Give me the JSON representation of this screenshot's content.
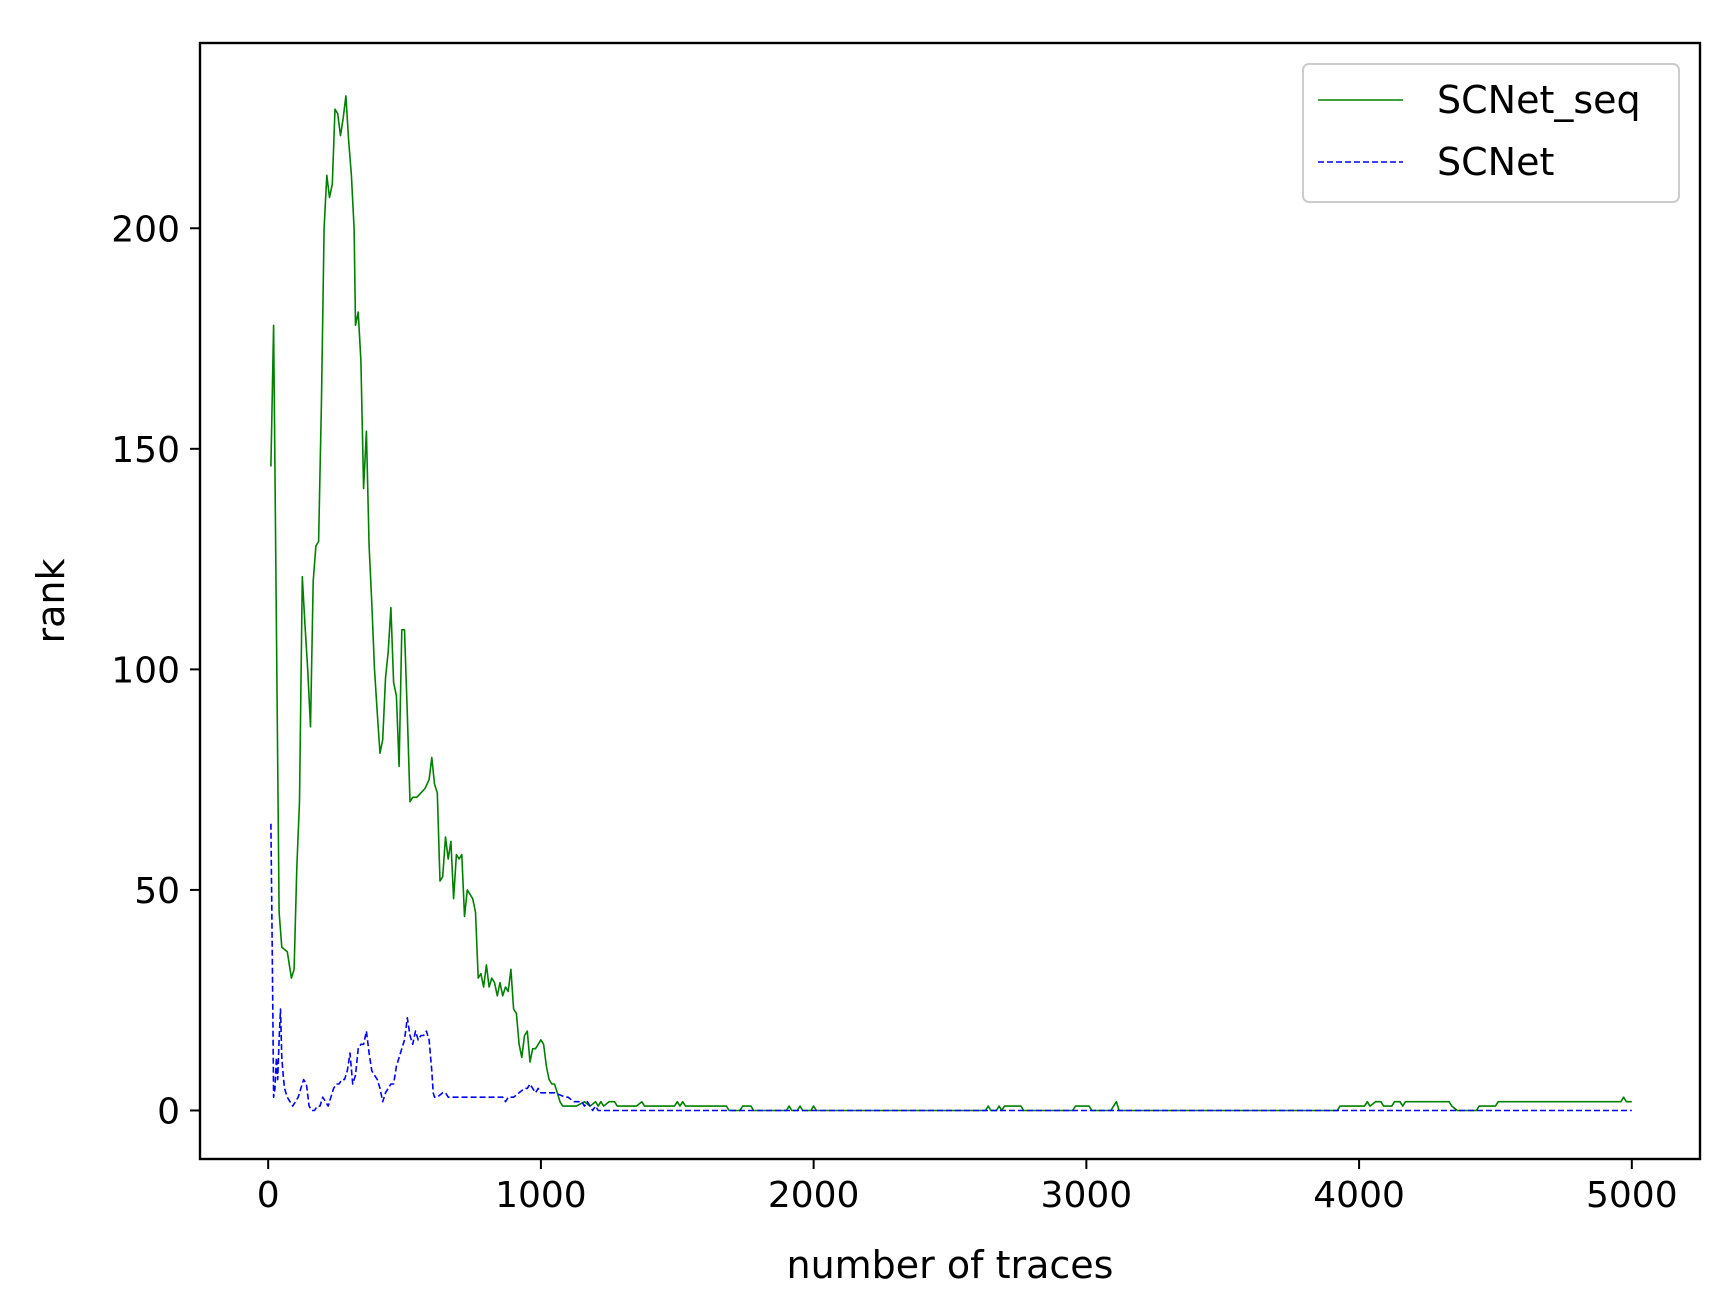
{
  "chart_data": {
    "type": "line",
    "title": "",
    "xlabel": "number of traces",
    "ylabel": "rank",
    "xlim": [
      -250,
      5250
    ],
    "ylim": [
      -11,
      242
    ],
    "xticks": [
      0,
      1000,
      2000,
      3000,
      4000,
      5000
    ],
    "xtick_labels": [
      "0",
      "1000",
      "2000",
      "3000",
      "4000",
      "5000"
    ],
    "yticks": [
      0,
      50,
      100,
      150,
      200
    ],
    "ytick_labels": [
      "0",
      "50",
      "100",
      "150",
      "200"
    ],
    "grid": false,
    "legend_position": "top-right",
    "series": [
      {
        "name": "SCNet_seq",
        "color": "#008000",
        "style": "solid",
        "points": [
          [
            10,
            146
          ],
          [
            20,
            178
          ],
          [
            30,
            110
          ],
          [
            40,
            45
          ],
          [
            50,
            37
          ],
          [
            70,
            36
          ],
          [
            85,
            30
          ],
          [
            95,
            32
          ],
          [
            105,
            55
          ],
          [
            115,
            70
          ],
          [
            125,
            121
          ],
          [
            135,
            110
          ],
          [
            145,
            100
          ],
          [
            155,
            87
          ],
          [
            165,
            120
          ],
          [
            175,
            128
          ],
          [
            185,
            129
          ],
          [
            195,
            160
          ],
          [
            205,
            200
          ],
          [
            215,
            212
          ],
          [
            225,
            207
          ],
          [
            235,
            210
          ],
          [
            245,
            227
          ],
          [
            255,
            226
          ],
          [
            265,
            221
          ],
          [
            275,
            225
          ],
          [
            285,
            230
          ],
          [
            295,
            220
          ],
          [
            305,
            212
          ],
          [
            315,
            200
          ],
          [
            320,
            178
          ],
          [
            330,
            181
          ],
          [
            340,
            170
          ],
          [
            350,
            141
          ],
          [
            360,
            154
          ],
          [
            370,
            128
          ],
          [
            380,
            115
          ],
          [
            390,
            100
          ],
          [
            400,
            90
          ],
          [
            410,
            81
          ],
          [
            420,
            84
          ],
          [
            430,
            98
          ],
          [
            440,
            104
          ],
          [
            450,
            114
          ],
          [
            460,
            97
          ],
          [
            470,
            94
          ],
          [
            480,
            78
          ],
          [
            490,
            109
          ],
          [
            500,
            109
          ],
          [
            510,
            90
          ],
          [
            520,
            70
          ],
          [
            530,
            71
          ],
          [
            545,
            71
          ],
          [
            560,
            72
          ],
          [
            575,
            73
          ],
          [
            590,
            75
          ],
          [
            600,
            80
          ],
          [
            610,
            74
          ],
          [
            620,
            72
          ],
          [
            630,
            52
          ],
          [
            640,
            53
          ],
          [
            650,
            62
          ],
          [
            660,
            57
          ],
          [
            670,
            61
          ],
          [
            680,
            48
          ],
          [
            690,
            58
          ],
          [
            700,
            57
          ],
          [
            710,
            58
          ],
          [
            720,
            44
          ],
          [
            730,
            50
          ],
          [
            740,
            49
          ],
          [
            750,
            48
          ],
          [
            760,
            45
          ],
          [
            770,
            30
          ],
          [
            780,
            31
          ],
          [
            790,
            28
          ],
          [
            800,
            33
          ],
          [
            810,
            28
          ],
          [
            820,
            30
          ],
          [
            830,
            29
          ],
          [
            840,
            26
          ],
          [
            850,
            29
          ],
          [
            860,
            26
          ],
          [
            870,
            28
          ],
          [
            880,
            27
          ],
          [
            890,
            32
          ],
          [
            900,
            23
          ],
          [
            910,
            22
          ],
          [
            920,
            15
          ],
          [
            930,
            12
          ],
          [
            940,
            17
          ],
          [
            950,
            18
          ],
          [
            960,
            11
          ],
          [
            970,
            14
          ],
          [
            980,
            14
          ],
          [
            990,
            15
          ],
          [
            1000,
            16
          ],
          [
            1010,
            15
          ],
          [
            1020,
            10
          ],
          [
            1030,
            7
          ],
          [
            1040,
            6
          ],
          [
            1050,
            6
          ],
          [
            1060,
            4
          ],
          [
            1070,
            2
          ],
          [
            1080,
            1
          ],
          [
            1130,
            1
          ],
          [
            1160,
            2
          ],
          [
            1180,
            1
          ],
          [
            1200,
            2
          ],
          [
            1210,
            1
          ],
          [
            1220,
            2
          ],
          [
            1230,
            1
          ],
          [
            1250,
            2
          ],
          [
            1270,
            2
          ],
          [
            1280,
            1
          ],
          [
            1350,
            1
          ],
          [
            1370,
            2
          ],
          [
            1380,
            1
          ],
          [
            1490,
            1
          ],
          [
            1500,
            2
          ],
          [
            1510,
            1
          ],
          [
            1520,
            2
          ],
          [
            1530,
            1
          ],
          [
            1680,
            1
          ],
          [
            1690,
            0
          ],
          [
            1730,
            0
          ],
          [
            1740,
            1
          ],
          [
            1770,
            1
          ],
          [
            1780,
            0
          ],
          [
            1900,
            0
          ],
          [
            1910,
            1
          ],
          [
            1920,
            0
          ],
          [
            1940,
            0
          ],
          [
            1950,
            1
          ],
          [
            1960,
            0
          ],
          [
            1990,
            0
          ],
          [
            2000,
            1
          ],
          [
            2010,
            0
          ],
          [
            2630,
            0
          ],
          [
            2640,
            1
          ],
          [
            2650,
            0
          ],
          [
            2670,
            0
          ],
          [
            2680,
            1
          ],
          [
            2690,
            0
          ],
          [
            2700,
            1
          ],
          [
            2760,
            1
          ],
          [
            2770,
            0
          ],
          [
            2950,
            0
          ],
          [
            2960,
            1
          ],
          [
            3010,
            1
          ],
          [
            3020,
            0
          ],
          [
            3090,
            0
          ],
          [
            3100,
            1
          ],
          [
            3110,
            2
          ],
          [
            3120,
            0
          ],
          [
            3920,
            0
          ],
          [
            3930,
            1
          ],
          [
            4020,
            1
          ],
          [
            4030,
            2
          ],
          [
            4040,
            1
          ],
          [
            4060,
            2
          ],
          [
            4080,
            2
          ],
          [
            4090,
            1
          ],
          [
            4120,
            1
          ],
          [
            4130,
            2
          ],
          [
            4150,
            2
          ],
          [
            4160,
            1
          ],
          [
            4170,
            2
          ],
          [
            4330,
            2
          ],
          [
            4340,
            1
          ],
          [
            4360,
            0
          ],
          [
            4430,
            0
          ],
          [
            4440,
            1
          ],
          [
            4500,
            1
          ],
          [
            4510,
            2
          ],
          [
            4960,
            2
          ],
          [
            4970,
            3
          ],
          [
            4980,
            2
          ],
          [
            5000,
            2
          ]
        ]
      },
      {
        "name": "SCNet",
        "color": "#0000ff",
        "style": "dashed",
        "points": [
          [
            10,
            65
          ],
          [
            15,
            35
          ],
          [
            20,
            3
          ],
          [
            25,
            5
          ],
          [
            30,
            12
          ],
          [
            35,
            7
          ],
          [
            40,
            16
          ],
          [
            45,
            23
          ],
          [
            50,
            12
          ],
          [
            55,
            8
          ],
          [
            60,
            5
          ],
          [
            70,
            3
          ],
          [
            80,
            2
          ],
          [
            90,
            1
          ],
          [
            100,
            2
          ],
          [
            110,
            3
          ],
          [
            120,
            5
          ],
          [
            130,
            7
          ],
          [
            140,
            6
          ],
          [
            150,
            1
          ],
          [
            160,
            0
          ],
          [
            170,
            0
          ],
          [
            180,
            1
          ],
          [
            190,
            1
          ],
          [
            200,
            3
          ],
          [
            210,
            2
          ],
          [
            220,
            1
          ],
          [
            230,
            3
          ],
          [
            240,
            5
          ],
          [
            250,
            6
          ],
          [
            260,
            6
          ],
          [
            270,
            7
          ],
          [
            280,
            7
          ],
          [
            290,
            9
          ],
          [
            300,
            13
          ],
          [
            310,
            6
          ],
          [
            320,
            8
          ],
          [
            330,
            14
          ],
          [
            340,
            15
          ],
          [
            350,
            15
          ],
          [
            360,
            18
          ],
          [
            370,
            13
          ],
          [
            380,
            9
          ],
          [
            390,
            8
          ],
          [
            400,
            7
          ],
          [
            410,
            5
          ],
          [
            420,
            2
          ],
          [
            430,
            4
          ],
          [
            440,
            5
          ],
          [
            450,
            6
          ],
          [
            460,
            6
          ],
          [
            470,
            10
          ],
          [
            480,
            12
          ],
          [
            490,
            14
          ],
          [
            500,
            16
          ],
          [
            510,
            21
          ],
          [
            520,
            17
          ],
          [
            530,
            15
          ],
          [
            540,
            18
          ],
          [
            550,
            16
          ],
          [
            560,
            17
          ],
          [
            570,
            17
          ],
          [
            580,
            18
          ],
          [
            590,
            16
          ],
          [
            600,
            9
          ],
          [
            605,
            4
          ],
          [
            610,
            3
          ],
          [
            620,
            3
          ],
          [
            640,
            4
          ],
          [
            650,
            4
          ],
          [
            660,
            3
          ],
          [
            680,
            3
          ],
          [
            700,
            3
          ],
          [
            750,
            3
          ],
          [
            800,
            3
          ],
          [
            860,
            3
          ],
          [
            870,
            2
          ],
          [
            880,
            3
          ],
          [
            900,
            3
          ],
          [
            920,
            4
          ],
          [
            940,
            5
          ],
          [
            950,
            5
          ],
          [
            960,
            6
          ],
          [
            970,
            5
          ],
          [
            980,
            4
          ],
          [
            990,
            5
          ],
          [
            1000,
            4
          ],
          [
            1050,
            4
          ],
          [
            1090,
            3
          ],
          [
            1100,
            3
          ],
          [
            1120,
            2
          ],
          [
            1150,
            2
          ],
          [
            1160,
            1
          ],
          [
            1170,
            2
          ],
          [
            1180,
            1
          ],
          [
            1190,
            0
          ],
          [
            1200,
            1
          ],
          [
            1210,
            0
          ],
          [
            5000,
            0
          ]
        ]
      }
    ]
  }
}
